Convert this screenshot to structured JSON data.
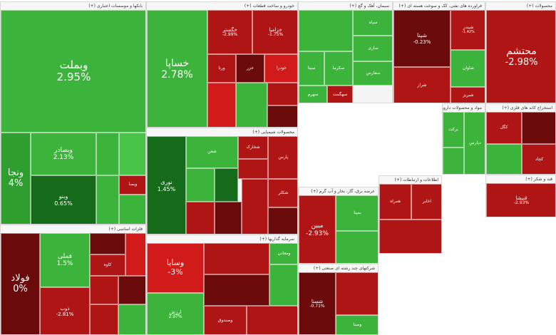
{
  "chart_data": {
    "type": "treemap",
    "colors": {
      "strong_pos": "#2e9e2e",
      "pos": "#3cb43c",
      "light_pos": "#48c448",
      "dark_pos": "#156b1a",
      "neg": "#b01515",
      "strong_neg": "#d11a1a",
      "dark_neg": "#6b0a0a"
    },
    "sectors": [
      {
        "label": "بانکها و موسسات اعتباری (+)",
        "tiles": [
          {
            "name": "وبملت",
            "change": "2.95%",
            "tone": "pos"
          },
          {
            "name": "ونجا",
            "change": "4%",
            "tone": "strong_pos"
          },
          {
            "name": "وبصادر",
            "change": "2.13%",
            "tone": "pos"
          },
          {
            "name": "وبنو",
            "change": "0.65%",
            "tone": "dark_pos"
          },
          {
            "name": "وبصا",
            "change": "",
            "tone": "neg"
          }
        ]
      },
      {
        "label": "خودرو و ساخت قطعات (+)",
        "tiles": [
          {
            "name": "خساپا",
            "change": "2.78%",
            "tone": "pos"
          },
          {
            "name": "خگستر",
            "change": "-2.99%",
            "tone": "neg"
          },
          {
            "name": "خزامیا",
            "change": "-1.75%",
            "tone": "neg"
          },
          {
            "name": "ورنا",
            "change": "",
            "tone": "neg"
          },
          {
            "name": "خزر",
            "change": "",
            "tone": "dark_neg"
          },
          {
            "name": "خودرا",
            "change": "",
            "tone": "strong_neg"
          }
        ]
      },
      {
        "label": "سیمان، آهک و گچ (+)",
        "tiles": [
          {
            "name": "سپاه",
            "change": "",
            "tone": "pos"
          },
          {
            "name": "ساری",
            "change": "",
            "tone": "pos"
          },
          {
            "name": "سیتا",
            "change": "",
            "tone": "pos"
          },
          {
            "name": "سکرما",
            "change": "",
            "tone": "pos"
          },
          {
            "name": "سفارس",
            "change": "",
            "tone": "pos"
          },
          {
            "name": "سهرم",
            "change": "",
            "tone": "pos"
          },
          {
            "name": "سهگمت",
            "change": "",
            "tone": "neg"
          }
        ]
      },
      {
        "label": "فراورده های نفتی، کک و سوخت هسته ای (+)",
        "tiles": [
          {
            "name": "شپنا",
            "change": "-0.23%",
            "tone": "dark_neg"
          },
          {
            "name": "شبندر",
            "change": "-1.42%",
            "tone": "neg"
          },
          {
            "name": "شراز",
            "change": "",
            "tone": "neg"
          },
          {
            "name": "شبریز",
            "change": "",
            "tone": "neg"
          },
          {
            "name": "شاوان",
            "change": "",
            "tone": "pos"
          }
        ]
      },
      {
        "label": "محصولات (+)",
        "tiles": [
          {
            "name": "محتشم",
            "change": "-2.98%",
            "tone": "neg"
          }
        ]
      },
      {
        "label": "محصولات شیمیایی (+)",
        "tiles": [
          {
            "name": "نوری",
            "change": "1.45%",
            "tone": "dark_pos"
          },
          {
            "name": "شخارک",
            "change": "",
            "tone": "neg"
          },
          {
            "name": "پارس",
            "change": "",
            "tone": "neg"
          },
          {
            "name": "شفن",
            "change": "",
            "tone": "pos"
          },
          {
            "name": "شکلر",
            "change": "",
            "tone": "neg"
          }
        ]
      },
      {
        "label": "فلزات اساسی (+)",
        "tiles": [
          {
            "name": "فولاد",
            "change": "0%",
            "tone": "dark_neg"
          },
          {
            "name": "فملی",
            "change": "1.5%",
            "tone": "pos"
          },
          {
            "name": "ذوب",
            "change": "-2.81%",
            "tone": "neg"
          },
          {
            "name": "کاوه",
            "change": "",
            "tone": "neg"
          }
        ]
      },
      {
        "label": "سرمایه گذاریها (+)",
        "tiles": [
          {
            "name": "وسایا",
            "change": "-3%",
            "tone": "strong_neg"
          },
          {
            "name": "ارزش",
            "change": "2.97%",
            "tone": "pos"
          },
          {
            "name": "وصندوق",
            "change": "",
            "tone": "neg"
          },
          {
            "name": "ومعادن",
            "change": "",
            "tone": "pos"
          }
        ]
      },
      {
        "label": "عرضه برق، گاز، بخار و آب گرم (+)",
        "tiles": [
          {
            "name": "مبین",
            "change": "-2.93%",
            "tone": "neg"
          },
          {
            "name": "بمپنا",
            "change": "",
            "tone": "pos"
          }
        ]
      },
      {
        "label": "شرکتهای چند رشته ای صنعتی (+)",
        "tiles": [
          {
            "name": "شستا",
            "change": "-0.71%",
            "tone": "dark_neg"
          },
          {
            "name": "وصنا",
            "change": "",
            "tone": "pos"
          }
        ]
      },
      {
        "label": "اطلاعات و ارتباطات (+)",
        "tiles": [
          {
            "name": "همراه",
            "change": "",
            "tone": "neg"
          },
          {
            "name": "اخابر",
            "change": "",
            "tone": "neg"
          }
        ]
      },
      {
        "label": "استخراج کانه های فلزی (+)",
        "tiles": [
          {
            "name": "کگل",
            "change": "",
            "tone": "neg"
          },
          {
            "name": "کچاد",
            "change": "",
            "tone": "neg"
          }
        ]
      },
      {
        "label": "مواد و محصولات دارویی (+)",
        "tiles": [
          {
            "name": "برکت",
            "change": "",
            "tone": "pos"
          },
          {
            "name": "دپارس",
            "change": "",
            "tone": "pos"
          }
        ]
      },
      {
        "label": "قند و شکر (+)",
        "tiles": [
          {
            "name": "قنیشا",
            "change": "-2.93%",
            "tone": "neg"
          }
        ]
      }
    ]
  }
}
